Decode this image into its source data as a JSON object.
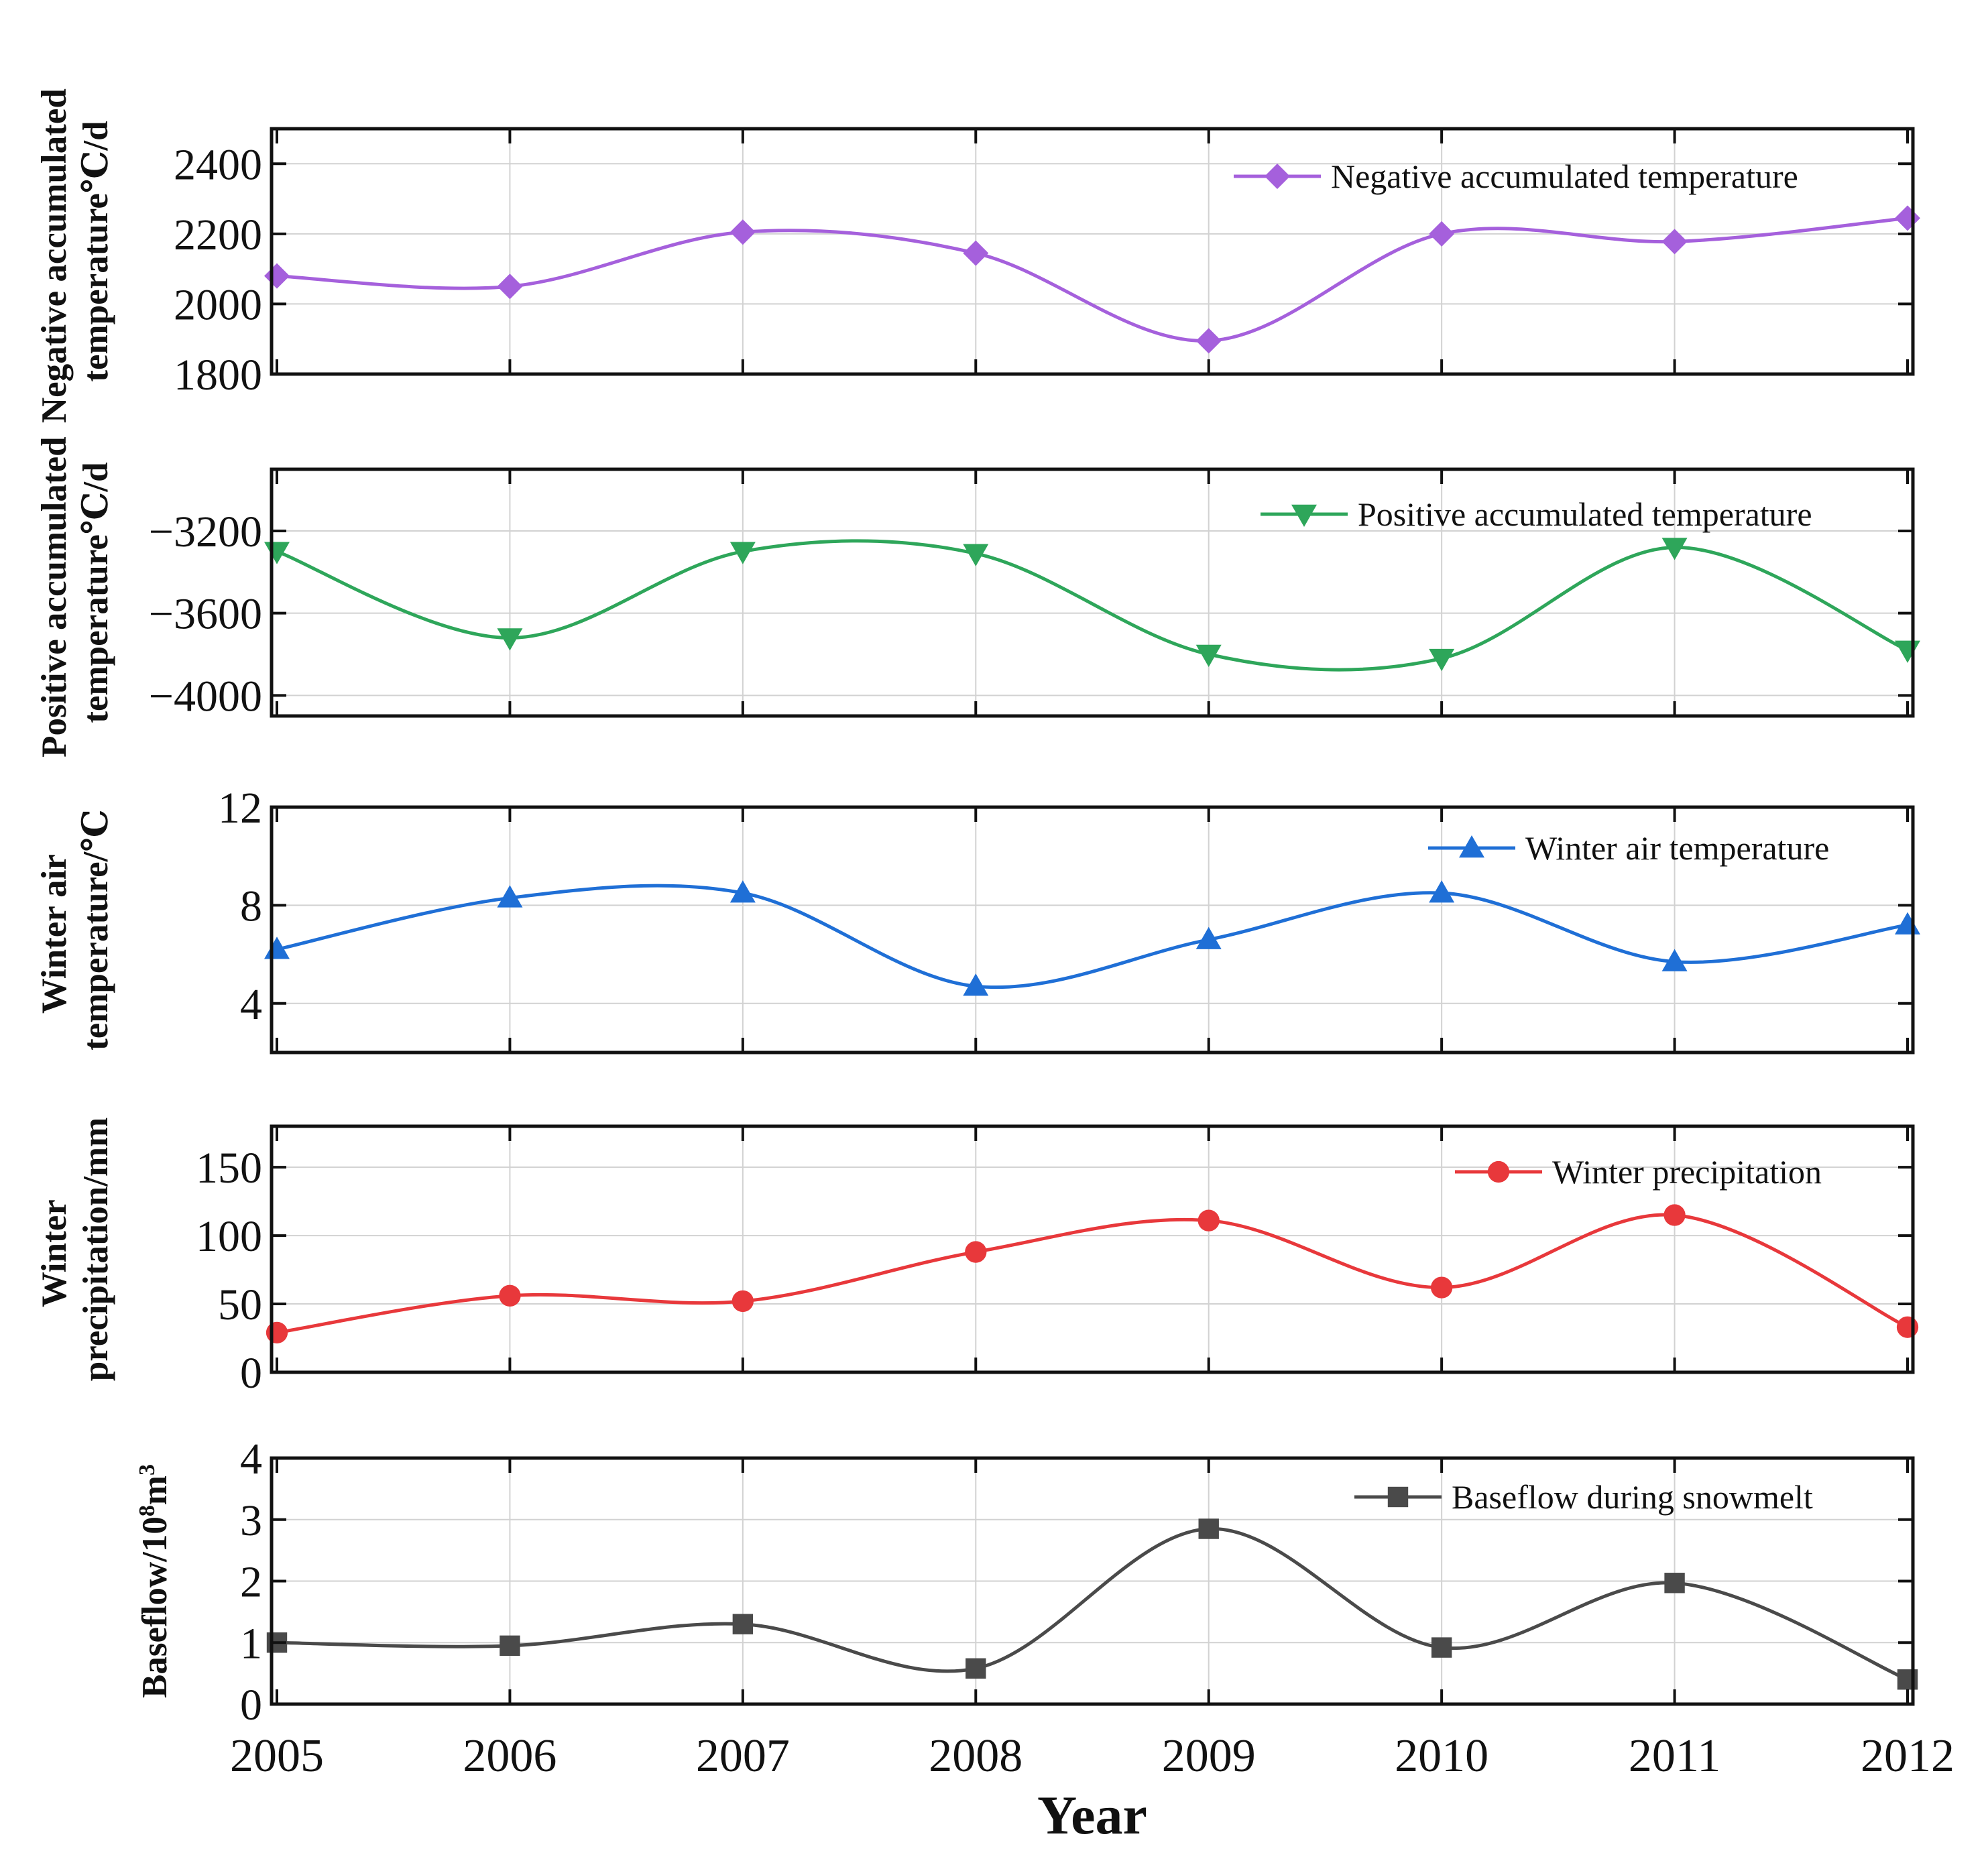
{
  "chart_data": {
    "type": "line",
    "x_axis": {
      "title": "Year",
      "categories": [
        "2005",
        "2006",
        "2007",
        "2008",
        "2009",
        "2010",
        "2011",
        "2012"
      ],
      "range": [
        2005,
        2012
      ]
    },
    "panels": [
      {
        "id": "negative",
        "ylabel_lines": [
          "Negative accumulated",
          "temperature℃/d"
        ],
        "ylim": [
          1800,
          2500
        ],
        "ticks": [
          1800,
          2000,
          2200,
          2400
        ],
        "tick_labels": [
          "1800",
          "2000",
          "2200",
          "2400"
        ],
        "series": {
          "name": "Negative accumulated temperature",
          "marker": "diamond",
          "color": "#a560dc",
          "values": [
            2080,
            2050,
            2205,
            2145,
            1895,
            2200,
            2178,
            2245
          ]
        }
      },
      {
        "id": "positive",
        "ylabel_lines": [
          "Positive accumulated",
          "temperature℃/d"
        ],
        "ylim": [
          -4100,
          -2900
        ],
        "ticks": [
          -4000,
          -3600,
          -3200
        ],
        "tick_labels": [
          "−4000",
          "−3600",
          "−3200"
        ],
        "series": {
          "name": "Positive accumulated temperature",
          "marker": "triangle-down",
          "color": "#2ea65a",
          "values": [
            -3300,
            -3720,
            -3300,
            -3310,
            -3800,
            -3820,
            -3280,
            -3780
          ]
        }
      },
      {
        "id": "air",
        "ylabel_lines": [
          "Winter air",
          "temperature/℃"
        ],
        "ylim": [
          2,
          12
        ],
        "ticks": [
          4,
          8,
          12
        ],
        "tick_labels": [
          "4",
          "8",
          "12"
        ],
        "series": {
          "name": "Winter air temperature",
          "marker": "triangle-up",
          "color": "#1f6fd6",
          "values": [
            6.2,
            8.3,
            8.5,
            4.7,
            6.6,
            8.5,
            5.7,
            7.2
          ]
        }
      },
      {
        "id": "precip",
        "ylabel_lines": [
          "Winter",
          "precipitation/mm"
        ],
        "ylim": [
          0,
          180
        ],
        "ticks": [
          0,
          50,
          100,
          150
        ],
        "tick_labels": [
          "0",
          "50",
          "100",
          "150"
        ],
        "series": {
          "name": "Winter precipitation",
          "marker": "circle",
          "color": "#e8383b",
          "values": [
            29,
            56,
            52,
            88,
            111,
            62,
            115,
            33
          ]
        }
      },
      {
        "id": "baseflow",
        "ylabel_lines": [
          "Baseflow/10",
          "8",
          "m",
          "3"
        ],
        "ylim": [
          0,
          4
        ],
        "ticks": [
          0,
          1,
          2,
          3,
          4
        ],
        "tick_labels": [
          "0",
          "1",
          "2",
          "3",
          "4"
        ],
        "series": {
          "name": "Baseflow during snowmelt",
          "marker": "square",
          "color": "#4a4a4a",
          "values": [
            1.0,
            0.95,
            1.3,
            0.58,
            2.85,
            0.92,
            1.97,
            0.4
          ]
        }
      }
    ]
  }
}
